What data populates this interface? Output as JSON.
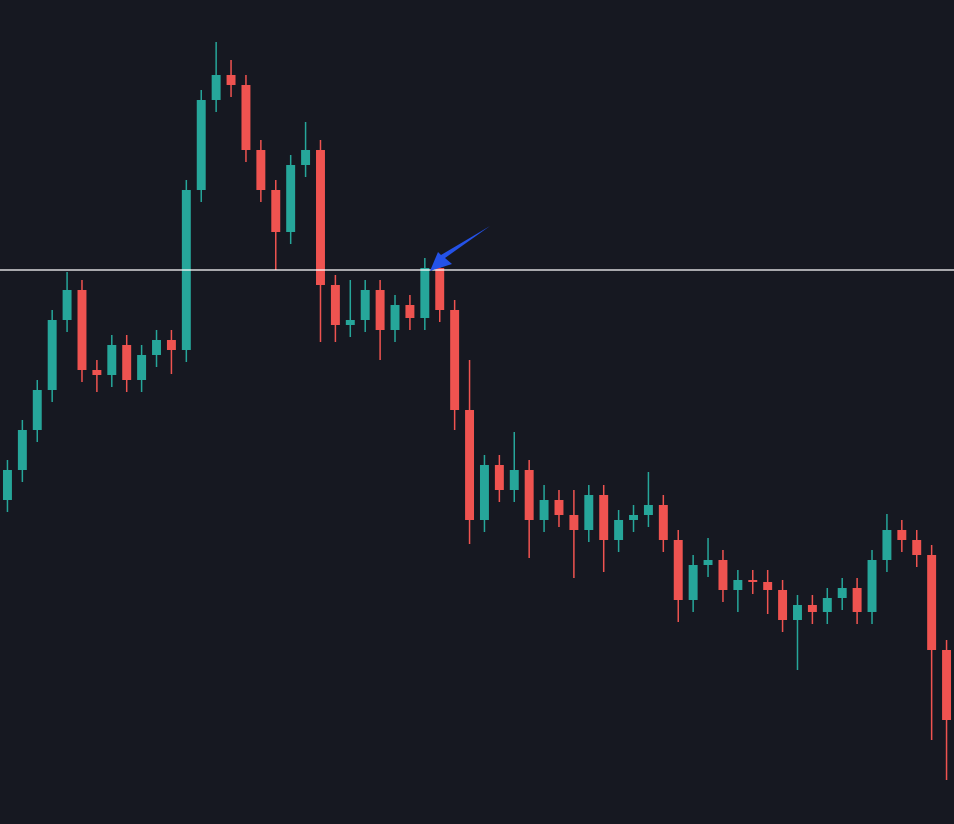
{
  "chart_data": {
    "type": "candlestick",
    "open": [
      324,
      354,
      394,
      434,
      504,
      534,
      454,
      449,
      479,
      444,
      469,
      484,
      474,
      634,
      724,
      749,
      739,
      674,
      634,
      592,
      659,
      674,
      539,
      499,
      504,
      534,
      494,
      519,
      506,
      556,
      514,
      414,
      304,
      359,
      334,
      354,
      304,
      324,
      309,
      294,
      329,
      284,
      304,
      309,
      319,
      284,
      224,
      259,
      264,
      234,
      244,
      242,
      234,
      204,
      219,
      212,
      226,
      236,
      212,
      264,
      294,
      284,
      269,
      174
    ],
    "high": [
      364,
      404,
      444,
      514,
      552,
      544,
      464,
      489,
      489,
      479,
      494,
      494,
      644,
      734,
      782,
      764,
      749,
      684,
      644,
      669,
      702,
      684,
      549,
      544,
      544,
      544,
      529,
      529,
      566,
      566,
      524,
      464,
      369,
      369,
      392,
      364,
      339,
      334,
      334,
      339,
      339,
      314,
      319,
      352,
      329,
      294,
      269,
      286,
      274,
      254,
      254,
      254,
      244,
      229,
      229,
      236,
      246,
      246,
      274,
      310,
      304,
      294,
      279,
      184
    ],
    "low": [
      312,
      342,
      382,
      422,
      492,
      442,
      432,
      437,
      432,
      432,
      457,
      450,
      462,
      622,
      712,
      727,
      662,
      622,
      554,
      580,
      647,
      482,
      482,
      487,
      492,
      464,
      482,
      494,
      494,
      502,
      394,
      280,
      292,
      322,
      322,
      266,
      292,
      297,
      246,
      282,
      252,
      272,
      292,
      297,
      272,
      202,
      212,
      247,
      222,
      212,
      230,
      210,
      192,
      154,
      200,
      200,
      214,
      200,
      200,
      252,
      272,
      257,
      84,
      44
    ],
    "close": [
      354,
      394,
      434,
      504,
      534,
      454,
      449,
      479,
      444,
      469,
      484,
      474,
      634,
      724,
      749,
      739,
      674,
      634,
      592,
      659,
      674,
      539,
      499,
      504,
      534,
      494,
      519,
      506,
      556,
      514,
      414,
      304,
      359,
      334,
      354,
      304,
      324,
      309,
      294,
      329,
      284,
      304,
      309,
      319,
      284,
      224,
      259,
      264,
      234,
      244,
      242,
      234,
      204,
      219,
      212,
      226,
      236,
      212,
      264,
      294,
      284,
      269,
      174,
      104
    ],
    "up_color": "#26a69a",
    "down_color": "#ef5350",
    "ylim": [
      0,
      824
    ],
    "hline": 554,
    "hline_color": "#ffffff"
  }
}
